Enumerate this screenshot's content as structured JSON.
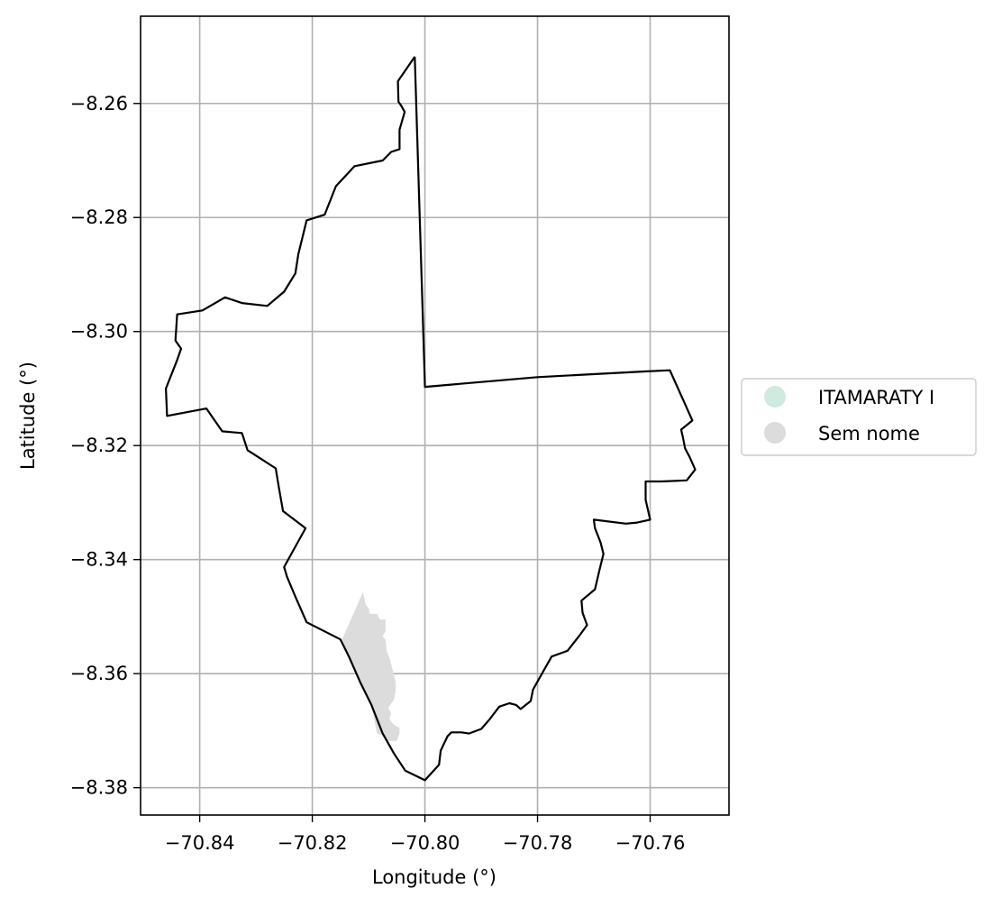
{
  "chart_data": {
    "type": "map",
    "title": "",
    "xlabel": "Longitude (°)",
    "ylabel": "Latitude (°)",
    "xlim": [
      -70.8505,
      -70.746
    ],
    "ylim": [
      -8.3848,
      -8.2447
    ],
    "grid": true,
    "x_ticks": [
      -70.84,
      -70.82,
      -70.8,
      -70.78,
      -70.76
    ],
    "x_tick_labels": [
      "−70.84",
      "−70.82",
      "−70.80",
      "−70.78",
      "−70.76"
    ],
    "y_ticks": [
      -8.26,
      -8.28,
      -8.3,
      -8.32,
      -8.34,
      -8.36,
      -8.38
    ],
    "y_tick_labels": [
      "−8.26",
      "−8.28",
      "−8.30",
      "−8.32",
      "−8.34",
      "−8.36",
      "−8.38"
    ],
    "legend": {
      "placement": "right-center",
      "entries": [
        {
          "name": "ITAMARATY I",
          "color": "#cfeadf"
        },
        {
          "name": "Sem nome",
          "color": "#dcdcdc"
        }
      ]
    },
    "boundary": {
      "stroke": "#000000",
      "coordinates": [
        [
          -70.8018,
          -8.2518
        ],
        [
          -70.8048,
          -8.2561
        ],
        [
          -70.8047,
          -8.2597
        ],
        [
          -70.8042,
          -8.2604
        ],
        [
          -70.8036,
          -8.2615
        ],
        [
          -70.8045,
          -8.2646
        ],
        [
          -70.8045,
          -8.268
        ],
        [
          -70.806,
          -8.2685
        ],
        [
          -70.8075,
          -8.27
        ],
        [
          -70.8125,
          -8.271
        ],
        [
          -70.8158,
          -8.2745
        ],
        [
          -70.8178,
          -8.2795
        ],
        [
          -70.821,
          -8.2805
        ],
        [
          -70.8225,
          -8.2865
        ],
        [
          -70.823,
          -8.2898
        ],
        [
          -70.825,
          -8.293
        ],
        [
          -70.828,
          -8.2955
        ],
        [
          -70.8325,
          -8.295
        ],
        [
          -70.8355,
          -8.294
        ],
        [
          -70.8395,
          -8.2963
        ],
        [
          -70.844,
          -8.297
        ],
        [
          -70.8443,
          -8.3016
        ],
        [
          -70.8433,
          -8.303
        ],
        [
          -70.844,
          -8.305
        ],
        [
          -70.846,
          -8.31
        ],
        [
          -70.8458,
          -8.3148
        ],
        [
          -70.8388,
          -8.3135
        ],
        [
          -70.836,
          -8.3175
        ],
        [
          -70.8325,
          -8.3178
        ],
        [
          -70.8315,
          -8.3208
        ],
        [
          -70.8265,
          -8.324
        ],
        [
          -70.826,
          -8.327
        ],
        [
          -70.8252,
          -8.3315
        ],
        [
          -70.8212,
          -8.3345
        ],
        [
          -70.825,
          -8.3413
        ],
        [
          -70.8245,
          -8.343
        ],
        [
          -70.823,
          -8.3465
        ],
        [
          -70.821,
          -8.351
        ],
        [
          -70.815,
          -8.354
        ],
        [
          -70.8135,
          -8.357
        ],
        [
          -70.8115,
          -8.3615
        ],
        [
          -70.8095,
          -8.3655
        ],
        [
          -70.8075,
          -8.3705
        ],
        [
          -70.8055,
          -8.374
        ],
        [
          -70.8035,
          -8.377
        ],
        [
          -70.8,
          -8.3787
        ],
        [
          -70.7975,
          -8.376
        ],
        [
          -70.7972,
          -8.3735
        ],
        [
          -70.796,
          -8.371
        ],
        [
          -70.7953,
          -8.3703
        ],
        [
          -70.7935,
          -8.3703
        ],
        [
          -70.7922,
          -8.3705
        ],
        [
          -70.79,
          -8.3697
        ],
        [
          -70.7885,
          -8.368
        ],
        [
          -70.7868,
          -8.3658
        ],
        [
          -70.785,
          -8.3652
        ],
        [
          -70.7838,
          -8.3655
        ],
        [
          -70.783,
          -8.3662
        ],
        [
          -70.7812,
          -8.3648
        ],
        [
          -70.7808,
          -8.3628
        ],
        [
          -70.7795,
          -8.3605
        ],
        [
          -70.7775,
          -8.357
        ],
        [
          -70.7747,
          -8.356
        ],
        [
          -70.7727,
          -8.3535
        ],
        [
          -70.7712,
          -8.3515
        ],
        [
          -70.772,
          -8.3493
        ],
        [
          -70.7722,
          -8.3472
        ],
        [
          -70.7698,
          -8.3452
        ],
        [
          -70.769,
          -8.3418
        ],
        [
          -70.7683,
          -8.339
        ],
        [
          -70.7688,
          -8.337
        ],
        [
          -70.7698,
          -8.3345
        ],
        [
          -70.77,
          -8.333
        ],
        [
          -70.7643,
          -8.3337
        ],
        [
          -70.7623,
          -8.3335
        ],
        [
          -70.76,
          -8.333
        ],
        [
          -70.7608,
          -8.3295
        ],
        [
          -70.7608,
          -8.3263
        ],
        [
          -70.758,
          -8.3263
        ],
        [
          -70.7535,
          -8.3261
        ],
        [
          -70.752,
          -8.3242
        ],
        [
          -70.753,
          -8.322
        ],
        [
          -70.7538,
          -8.3205
        ],
        [
          -70.7542,
          -8.3185
        ],
        [
          -70.7545,
          -8.3172
        ],
        [
          -70.7525,
          -8.3156
        ],
        [
          -70.7565,
          -8.3068
        ],
        [
          -70.761,
          -8.307
        ],
        [
          -70.78,
          -8.308
        ],
        [
          -70.8,
          -8.3097
        ],
        [
          -70.8018,
          -8.2518
        ]
      ]
    },
    "region_sem_nome": {
      "color": "#dcdcdc",
      "coordinates": [
        [
          -70.811,
          -8.3457
        ],
        [
          -70.8105,
          -8.348
        ],
        [
          -70.81,
          -8.3485
        ],
        [
          -70.8098,
          -8.3495
        ],
        [
          -70.8085,
          -8.3495
        ],
        [
          -70.808,
          -8.3505
        ],
        [
          -70.807,
          -8.3505
        ],
        [
          -70.807,
          -8.3525
        ],
        [
          -70.8075,
          -8.3535
        ],
        [
          -70.807,
          -8.354
        ],
        [
          -70.8068,
          -8.356
        ],
        [
          -70.8062,
          -8.3575
        ],
        [
          -70.8057,
          -8.3595
        ],
        [
          -70.8052,
          -8.3615
        ],
        [
          -70.8052,
          -8.363
        ],
        [
          -70.8055,
          -8.3645
        ],
        [
          -70.8065,
          -8.366
        ],
        [
          -70.806,
          -8.367
        ],
        [
          -70.8063,
          -8.368
        ],
        [
          -70.8055,
          -8.369
        ],
        [
          -70.8045,
          -8.3695
        ],
        [
          -70.8045,
          -8.3705
        ],
        [
          -70.805,
          -8.3718
        ],
        [
          -70.8065,
          -8.3718
        ],
        [
          -70.807,
          -8.371
        ],
        [
          -70.8085,
          -8.3705
        ],
        [
          -70.8088,
          -8.369
        ],
        [
          -70.8095,
          -8.3655
        ],
        [
          -70.8115,
          -8.3615
        ],
        [
          -70.8135,
          -8.357
        ],
        [
          -70.8147,
          -8.354
        ]
      ]
    }
  }
}
